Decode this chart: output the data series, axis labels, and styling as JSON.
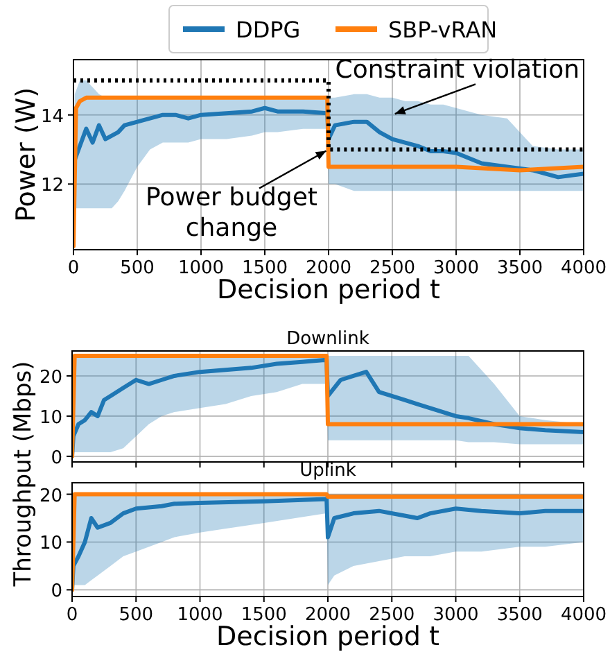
{
  "chart_data": [
    {
      "type": "line",
      "xlabel": "Decision period t",
      "ylabel": "Power (W)",
      "xlim": [
        0,
        4000
      ],
      "ylim": [
        10.1,
        15.6
      ],
      "xticks": [
        0,
        500,
        1000,
        1500,
        2000,
        2500,
        3000,
        3500,
        4000
      ],
      "yticks": [
        12,
        14
      ],
      "grid": true,
      "legend": "top",
      "marker": "none",
      "annotations": [
        "Constraint violation",
        {
          "text": "Power budget\nchange",
          "x": 2000,
          "y": 13
        }
      ],
      "series": [
        {
          "name": "DDPG",
          "color": "#1f77b4",
          "x": [
            0,
            10,
            50,
            100,
            150,
            200,
            250,
            300,
            350,
            400,
            500,
            600,
            700,
            800,
            900,
            1000,
            1200,
            1400,
            1500,
            1600,
            1800,
            1990,
            2000,
            2050,
            2200,
            2300,
            2400,
            2500,
            2600,
            2700,
            2800,
            2900,
            3000,
            3200,
            3400,
            3600,
            3800,
            4000
          ],
          "values": [
            null,
            12.7,
            13.1,
            13.6,
            13.2,
            13.7,
            13.3,
            13.4,
            13.5,
            13.7,
            13.8,
            13.9,
            14.0,
            14.0,
            13.9,
            14.0,
            14.05,
            14.1,
            14.2,
            14.1,
            14.1,
            14.05,
            13.3,
            13.7,
            13.8,
            13.8,
            13.5,
            13.3,
            13.2,
            13.1,
            12.95,
            12.95,
            12.9,
            12.6,
            12.5,
            12.4,
            12.2,
            12.3
          ],
          "lower": [
            10.2,
            11.3,
            11.3,
            11.3,
            11.3,
            11.3,
            11.3,
            11.3,
            11.5,
            11.8,
            12.5,
            13.0,
            13.2,
            13.2,
            13.2,
            13.3,
            13.3,
            13.4,
            13.5,
            13.5,
            13.6,
            13.6,
            12.0,
            12.0,
            11.8,
            11.8,
            11.8,
            11.8,
            11.8,
            11.8,
            11.8,
            11.8,
            11.8,
            11.8,
            11.8,
            11.8,
            11.8,
            11.8
          ],
          "upper": [
            10.2,
            14.6,
            15.0,
            15.0,
            14.8,
            14.6,
            14.5,
            14.5,
            14.5,
            14.5,
            14.5,
            14.5,
            14.5,
            14.5,
            14.5,
            14.5,
            14.5,
            14.5,
            14.5,
            14.5,
            14.5,
            14.5,
            14.5,
            14.5,
            14.6,
            14.6,
            14.5,
            14.5,
            14.4,
            14.4,
            14.3,
            14.3,
            14.2,
            14.0,
            13.9,
            13.1,
            13.0,
            13.0
          ]
        },
        {
          "name": "SBP-vRAN",
          "color": "#ff7f0e",
          "x": [
            0,
            20,
            50,
            100,
            500,
            1000,
            1500,
            1990,
            2000,
            2500,
            3000,
            3500,
            4000
          ],
          "values": [
            10.2,
            14.2,
            14.4,
            14.5,
            14.5,
            14.5,
            14.5,
            14.5,
            12.5,
            12.5,
            12.5,
            12.4,
            12.5
          ]
        },
        {
          "type": "line",
          "color": "#000000",
          "line_style": "dotted",
          "x": [
            0,
            2000,
            2000,
            4000
          ],
          "values": [
            15,
            15,
            13,
            13
          ]
        }
      ]
    },
    {
      "type": "line",
      "title": "Downlink",
      "ylabel": "Throughput (Mbps)",
      "xlim": [
        0,
        4000
      ],
      "ylim": [
        -1.4,
        26.2
      ],
      "xticks": [
        0,
        500,
        1000,
        1500,
        2000,
        2500,
        3000,
        3500,
        4000
      ],
      "yticks": [
        0,
        10,
        20
      ],
      "grid": true,
      "tick_labels": "y",
      "marker": "none",
      "series": [
        {
          "color": "#1f77b4",
          "x": [
            0,
            10,
            50,
            100,
            150,
            200,
            250,
            300,
            400,
            500,
            600,
            700,
            800,
            1000,
            1200,
            1400,
            1600,
            1800,
            1990,
            2000,
            2100,
            2200,
            2300,
            2400,
            2500,
            2600,
            2700,
            2800,
            2900,
            3000,
            3100,
            3300,
            3500,
            3700,
            4000
          ],
          "values": [
            0,
            5,
            8,
            9,
            11,
            10,
            14,
            15,
            17,
            19,
            18,
            19,
            20,
            21,
            21.5,
            22,
            23,
            23.5,
            24,
            15,
            19,
            20,
            21,
            16,
            15,
            14,
            13,
            12,
            11,
            10,
            9.5,
            8,
            7,
            6.5,
            6
          ],
          "lower": [
            0,
            1,
            1,
            1,
            1,
            1,
            1,
            1,
            2,
            5,
            8,
            10,
            11,
            12,
            13,
            15,
            16,
            18,
            18,
            4,
            4,
            4,
            4,
            4,
            4,
            4,
            4,
            4,
            4,
            4,
            3.5,
            3.5,
            3,
            3,
            3
          ],
          "upper": [
            0,
            25,
            25,
            25,
            25,
            25,
            25,
            25,
            25,
            25,
            25,
            25,
            25,
            25,
            25,
            25,
            25,
            25,
            25,
            25,
            25,
            25,
            25,
            25,
            25,
            25,
            25,
            25,
            25,
            25,
            25,
            18,
            10,
            9,
            8
          ]
        },
        {
          "color": "#ff7f0e",
          "x": [
            0,
            20,
            1990,
            2000,
            4000
          ],
          "values": [
            0,
            25,
            25,
            8,
            8
          ]
        }
      ]
    },
    {
      "type": "line",
      "title": "Uplink",
      "xlabel": "Decision period t",
      "xlim": [
        0,
        4000
      ],
      "ylim": [
        -1.4,
        22.4
      ],
      "xticks": [
        0,
        500,
        1000,
        1500,
        2000,
        2500,
        3000,
        3500,
        4000
      ],
      "yticks": [
        0,
        10,
        20
      ],
      "grid": true,
      "marker": "none",
      "series": [
        {
          "color": "#1f77b4",
          "x": [
            0,
            10,
            50,
            100,
            150,
            200,
            300,
            400,
            500,
            700,
            800,
            1000,
            1500,
            1990,
            2000,
            2050,
            2200,
            2400,
            2600,
            2700,
            2800,
            3000,
            3200,
            3500,
            3700,
            4000
          ],
          "values": [
            0,
            5,
            7,
            10,
            15,
            13,
            14,
            16,
            17,
            17.5,
            18,
            18.2,
            18.5,
            19,
            11,
            15,
            16,
            16.5,
            15.5,
            15,
            16,
            17,
            16.5,
            16,
            16.5,
            16.5
          ],
          "lower": [
            0,
            1,
            1,
            1,
            2,
            3,
            5,
            7,
            8,
            10,
            11,
            12,
            14,
            16,
            1,
            3,
            5,
            6,
            7,
            7,
            7,
            8,
            8,
            9,
            9,
            10
          ],
          "upper": [
            0,
            20,
            20,
            20,
            20,
            20,
            20,
            20,
            20,
            20,
            20,
            20,
            20,
            20,
            20,
            20,
            20,
            20,
            20,
            20,
            20,
            20,
            20,
            20,
            20,
            20
          ]
        },
        {
          "color": "#ff7f0e",
          "x": [
            0,
            20,
            1990,
            2000,
            4000
          ],
          "values": [
            0,
            20,
            20,
            19.5,
            19.5
          ]
        }
      ]
    }
  ]
}
